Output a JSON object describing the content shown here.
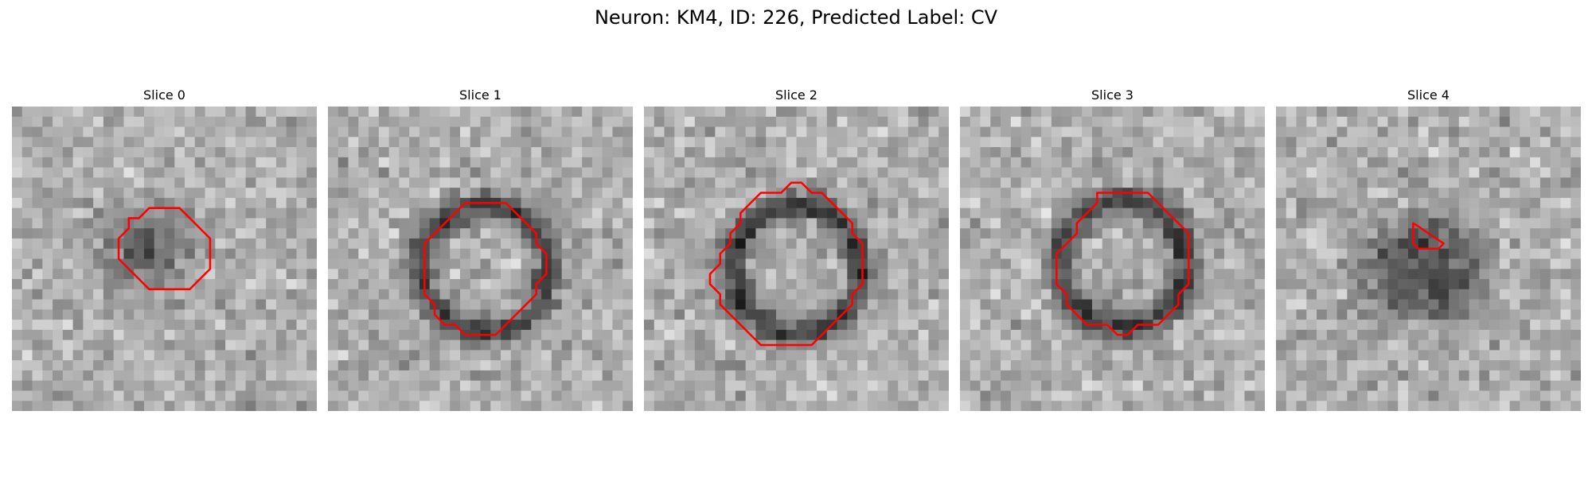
{
  "figure": {
    "title": "Neuron: KM4, ID: 226, Predicted Label: CV"
  },
  "panels": [
    {
      "title": "Slice 0",
      "contour_color": "#ff0000",
      "pattern": "dark-blob",
      "contour_image_points": [
        [
          15.5,
          10
        ],
        [
          16.5,
          10
        ],
        [
          17.5,
          11
        ],
        [
          18.5,
          12
        ],
        [
          19.5,
          13
        ],
        [
          19.5,
          14
        ],
        [
          19.5,
          15
        ],
        [
          19.5,
          16
        ],
        [
          18.5,
          17
        ],
        [
          17.5,
          18
        ],
        [
          16.5,
          18
        ],
        [
          15.5,
          18
        ],
        [
          14.5,
          18
        ],
        [
          13.5,
          18
        ],
        [
          12.5,
          17
        ],
        [
          11.5,
          16
        ],
        [
          10.5,
          15
        ],
        [
          10.5,
          14
        ],
        [
          10.5,
          13
        ],
        [
          11.5,
          12
        ],
        [
          11.5,
          11
        ],
        [
          12.5,
          11
        ],
        [
          13.5,
          10
        ],
        [
          14.5,
          10
        ]
      ]
    },
    {
      "title": "Slice 1",
      "contour_color": "#ff0000",
      "pattern": "ring",
      "contour_image_points": [
        [
          14.5,
          9.5
        ],
        [
          15.5,
          9.5
        ],
        [
          16.5,
          9.5
        ],
        [
          17.5,
          9.5
        ],
        [
          18.5,
          10.5
        ],
        [
          19.5,
          11.5
        ],
        [
          20.5,
          12.5
        ],
        [
          20.5,
          13.5
        ],
        [
          21.5,
          14.5
        ],
        [
          21.5,
          15.5
        ],
        [
          21.5,
          16.5
        ],
        [
          20.5,
          17.5
        ],
        [
          20.5,
          18.5
        ],
        [
          19.5,
          19.5
        ],
        [
          18.5,
          20.5
        ],
        [
          17.5,
          21.5
        ],
        [
          16.5,
          22.5
        ],
        [
          15.5,
          22.5
        ],
        [
          14.5,
          22.5
        ],
        [
          13.5,
          22.5
        ],
        [
          12.5,
          21.5
        ],
        [
          11.5,
          21.5
        ],
        [
          10.5,
          20.5
        ],
        [
          10.5,
          19.5
        ],
        [
          9.5,
          18.5
        ],
        [
          9.5,
          17.5
        ],
        [
          9.5,
          16.5
        ],
        [
          9.5,
          15.5
        ],
        [
          9.5,
          14.5
        ],
        [
          9.5,
          13.5
        ],
        [
          10.5,
          12.5
        ],
        [
          11.5,
          11.5
        ],
        [
          12.5,
          10.5
        ],
        [
          13.5,
          9.5
        ]
      ]
    },
    {
      "title": "Slice 2",
      "contour_color": "#ff0000",
      "pattern": "ring",
      "contour_image_points": [
        [
          14.5,
          7.5
        ],
        [
          15.5,
          7.5
        ],
        [
          16.5,
          8.5
        ],
        [
          17.5,
          8.5
        ],
        [
          18.5,
          9.5
        ],
        [
          19.5,
          10.5
        ],
        [
          20.5,
          11.5
        ],
        [
          20.5,
          12.5
        ],
        [
          21.5,
          13.5
        ],
        [
          21.5,
          14.5
        ],
        [
          21.5,
          15.5
        ],
        [
          21.5,
          16.5
        ],
        [
          21.5,
          17.5
        ],
        [
          20.5,
          18.5
        ],
        [
          20.5,
          19.5
        ],
        [
          19.5,
          20.5
        ],
        [
          18.5,
          21.5
        ],
        [
          17.5,
          22.5
        ],
        [
          16.5,
          23.5
        ],
        [
          15.5,
          23.5
        ],
        [
          14.5,
          23.5
        ],
        [
          13.5,
          23.5
        ],
        [
          12.5,
          23.5
        ],
        [
          11.5,
          23.5
        ],
        [
          10.5,
          22.5
        ],
        [
          9.5,
          21.5
        ],
        [
          8.5,
          20.5
        ],
        [
          7.5,
          19.5
        ],
        [
          7.5,
          18.5
        ],
        [
          6.5,
          17.5
        ],
        [
          6.5,
          16.5
        ],
        [
          7.5,
          15.5
        ],
        [
          7.5,
          14.5
        ],
        [
          8.5,
          13.5
        ],
        [
          8.5,
          12.5
        ],
        [
          9.5,
          11.5
        ],
        [
          9.5,
          10.5
        ],
        [
          10.5,
          9.5
        ],
        [
          11.5,
          8.5
        ],
        [
          12.5,
          8.5
        ],
        [
          13.5,
          8.5
        ]
      ]
    },
    {
      "title": "Slice 3",
      "contour_color": "#ff0000",
      "pattern": "ring",
      "contour_image_points": [
        [
          13.5,
          8.5
        ],
        [
          14.5,
          8.5
        ],
        [
          15.5,
          8.5
        ],
        [
          16.5,
          8.5
        ],
        [
          17.5,
          8.5
        ],
        [
          18.5,
          8.5
        ],
        [
          19.5,
          9.5
        ],
        [
          20.5,
          10.5
        ],
        [
          21.5,
          11.5
        ],
        [
          22.5,
          12.5
        ],
        [
          22.5,
          13.5
        ],
        [
          22.5,
          14.5
        ],
        [
          22.5,
          15.5
        ],
        [
          22.5,
          16.5
        ],
        [
          22.5,
          17.5
        ],
        [
          21.5,
          18.5
        ],
        [
          21.5,
          19.5
        ],
        [
          20.5,
          20.5
        ],
        [
          19.5,
          21.5
        ],
        [
          18.5,
          21.5
        ],
        [
          17.5,
          21.5
        ],
        [
          16.5,
          22.5
        ],
        [
          15.5,
          22.5
        ],
        [
          14.5,
          21.5
        ],
        [
          13.5,
          21.5
        ],
        [
          12.5,
          21.5
        ],
        [
          11.5,
          20.5
        ],
        [
          10.5,
          19.5
        ],
        [
          10.5,
          18.5
        ],
        [
          9.5,
          17.5
        ],
        [
          9.5,
          16.5
        ],
        [
          9.5,
          15.5
        ],
        [
          9.5,
          14.5
        ],
        [
          10.5,
          13.5
        ],
        [
          11.5,
          12.5
        ],
        [
          11.5,
          11.5
        ],
        [
          12.5,
          10.5
        ],
        [
          13.5,
          9.5
        ]
      ]
    },
    {
      "title": "Slice 4",
      "contour_color": "#ff0000",
      "pattern": "dark-disc",
      "contour_image_points": [
        [
          13.5,
          11.5
        ],
        [
          14,
          11.8
        ],
        [
          15,
          12.5
        ],
        [
          16.5,
          13.5
        ],
        [
          16,
          14
        ],
        [
          15,
          14
        ],
        [
          14,
          14
        ],
        [
          13.5,
          13.5
        ],
        [
          13.5,
          12.5
        ]
      ]
    }
  ]
}
